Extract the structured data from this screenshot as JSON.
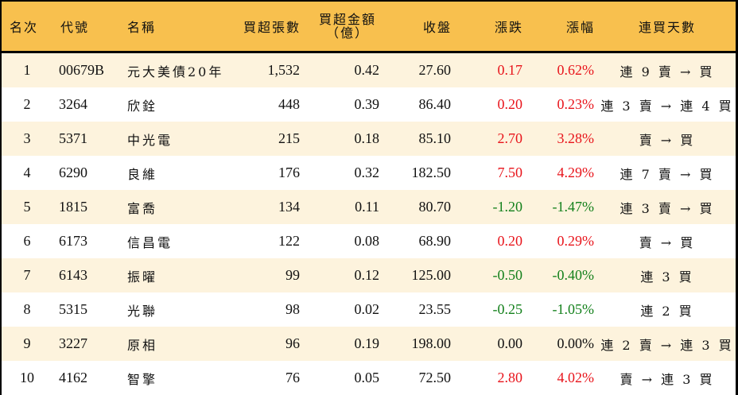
{
  "table": {
    "headers": {
      "rank": "名次",
      "code": "代號",
      "name": "名稱",
      "net_buy_lots": "買超張數",
      "net_buy_amount_line1": "買超金額",
      "net_buy_amount_line2": "（億）",
      "close": "收盤",
      "change": "漲跌",
      "change_pct": "漲幅",
      "streak": "連買天數"
    },
    "colors": {
      "header_bg": "#f8c04e",
      "row_alt_bg": "#fdf3dd",
      "row_bg": "#ffffff",
      "up": "#e8141b",
      "down": "#13801b",
      "flat": "#111111"
    },
    "rows": [
      {
        "rank": "1",
        "code": "00679B",
        "name": "元大美債20年",
        "lots": "1,532",
        "amount": "0.42",
        "close": "27.60",
        "change": "0.17",
        "pct": "0.62%",
        "direction": "up",
        "streak": "連 9 賣 → 買"
      },
      {
        "rank": "2",
        "code": "3264",
        "name": "欣銓",
        "lots": "448",
        "amount": "0.39",
        "close": "86.40",
        "change": "0.20",
        "pct": "0.23%",
        "direction": "up",
        "streak": "連 3 賣 → 連 4 買"
      },
      {
        "rank": "3",
        "code": "5371",
        "name": "中光電",
        "lots": "215",
        "amount": "0.18",
        "close": "85.10",
        "change": "2.70",
        "pct": "3.28%",
        "direction": "up",
        "streak": "賣 → 買"
      },
      {
        "rank": "4",
        "code": "6290",
        "name": "良維",
        "lots": "176",
        "amount": "0.32",
        "close": "182.50",
        "change": "7.50",
        "pct": "4.29%",
        "direction": "up",
        "streak": "連 7 賣 → 買"
      },
      {
        "rank": "5",
        "code": "1815",
        "name": "富喬",
        "lots": "134",
        "amount": "0.11",
        "close": "80.70",
        "change": "-1.20",
        "pct": "-1.47%",
        "direction": "down",
        "streak": "連 3 賣 → 買"
      },
      {
        "rank": "6",
        "code": "6173",
        "name": "信昌電",
        "lots": "122",
        "amount": "0.08",
        "close": "68.90",
        "change": "0.20",
        "pct": "0.29%",
        "direction": "up",
        "streak": "賣 → 買"
      },
      {
        "rank": "7",
        "code": "6143",
        "name": "振曜",
        "lots": "99",
        "amount": "0.12",
        "close": "125.00",
        "change": "-0.50",
        "pct": "-0.40%",
        "direction": "down",
        "streak": "連 3 買"
      },
      {
        "rank": "8",
        "code": "5315",
        "name": "光聯",
        "lots": "98",
        "amount": "0.02",
        "close": "23.55",
        "change": "-0.25",
        "pct": "-1.05%",
        "direction": "down",
        "streak": "連 2 買"
      },
      {
        "rank": "9",
        "code": "3227",
        "name": "原相",
        "lots": "96",
        "amount": "0.19",
        "close": "198.00",
        "change": "0.00",
        "pct": "0.00%",
        "direction": "flat",
        "streak": "連 2 賣 → 連 3 買"
      },
      {
        "rank": "10",
        "code": "4162",
        "name": "智擎",
        "lots": "76",
        "amount": "0.05",
        "close": "72.50",
        "change": "2.80",
        "pct": "4.02%",
        "direction": "up",
        "streak": "賣 → 連 3 買"
      }
    ]
  }
}
